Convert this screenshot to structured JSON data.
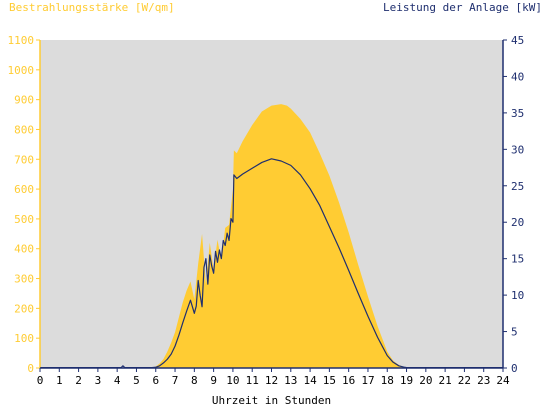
{
  "chart_data": {
    "type": "area",
    "title_left": "Bestrahlungsstärke [W/qm]",
    "title_right": "Leistung der Anlage [kW]",
    "xlabel": "Uhrzeit in Stunden",
    "xlim": [
      0,
      24
    ],
    "x_ticks": [
      "0",
      "1",
      "2",
      "3",
      "4",
      "5",
      "6",
      "7",
      "8",
      "9",
      "10",
      "11",
      "12",
      "13",
      "14",
      "15",
      "16",
      "17",
      "18",
      "19",
      "20",
      "21",
      "22",
      "23",
      "24"
    ],
    "ylim_left": [
      0,
      1100
    ],
    "y_ticks_left": [
      "0",
      "100",
      "200",
      "300",
      "400",
      "500",
      "600",
      "700",
      "800",
      "900",
      "1000",
      "1100"
    ],
    "ylim_right": [
      0,
      45
    ],
    "y_ticks_right": [
      "0",
      "5",
      "10",
      "15",
      "20",
      "25",
      "30",
      "35",
      "40",
      "45"
    ],
    "grid": false,
    "background_color": "#dcdcdc",
    "series": [
      {
        "name": "Bestrahlungsstärke [W/qm]",
        "axis": "left",
        "render": "area",
        "color": "#ffcc33",
        "x": [
          0,
          5.8,
          6.0,
          6.2,
          6.4,
          6.6,
          6.8,
          7.0,
          7.2,
          7.4,
          7.6,
          7.8,
          8.0,
          8.2,
          8.4,
          8.6,
          8.8,
          9.0,
          9.2,
          9.4,
          9.6,
          9.8,
          10.0,
          10.05,
          10.2,
          10.5,
          11.0,
          11.5,
          12.0,
          12.5,
          12.8,
          13.0,
          13.5,
          14.0,
          14.5,
          15.0,
          15.5,
          16.0,
          16.5,
          17.0,
          17.5,
          18.0,
          18.3,
          18.6,
          18.9,
          19.0,
          24
        ],
        "values": [
          0,
          0,
          5,
          15,
          30,
          55,
          85,
          120,
          170,
          220,
          260,
          290,
          230,
          350,
          450,
          280,
          420,
          330,
          430,
          360,
          470,
          480,
          600,
          730,
          720,
          760,
          815,
          860,
          880,
          885,
          880,
          870,
          835,
          790,
          720,
          645,
          555,
          455,
          345,
          240,
          140,
          55,
          25,
          10,
          3,
          0,
          0
        ]
      },
      {
        "name": "Leistung der Anlage [kW]",
        "axis": "right",
        "render": "line",
        "color": "#1f2f6f",
        "x": [
          0,
          4.2,
          4.3,
          4.4,
          5.8,
          6.0,
          6.2,
          6.4,
          6.6,
          6.8,
          7.0,
          7.2,
          7.4,
          7.6,
          7.8,
          8.0,
          8.1,
          8.2,
          8.3,
          8.4,
          8.5,
          8.6,
          8.7,
          8.8,
          8.9,
          9.0,
          9.1,
          9.2,
          9.3,
          9.4,
          9.5,
          9.6,
          9.7,
          9.8,
          9.9,
          10.0,
          10.05,
          10.2,
          10.5,
          11.0,
          11.5,
          12.0,
          12.5,
          13.0,
          13.5,
          14.0,
          14.5,
          15.0,
          15.5,
          16.0,
          16.5,
          17.0,
          17.5,
          18.0,
          18.3,
          18.6,
          18.9,
          19.0,
          24
        ],
        "values": [
          0.05,
          0.05,
          0.3,
          0.05,
          0.05,
          0.1,
          0.3,
          0.7,
          1.2,
          1.9,
          3.0,
          4.5,
          6.2,
          7.8,
          9.3,
          7.5,
          8.5,
          12.0,
          10.0,
          8.4,
          13.8,
          15.0,
          11.5,
          15.5,
          14.0,
          13.0,
          16.0,
          14.5,
          16.2,
          15.0,
          17.5,
          16.8,
          18.5,
          17.5,
          20.5,
          20.0,
          26.5,
          26.0,
          26.6,
          27.4,
          28.2,
          28.7,
          28.4,
          27.8,
          26.5,
          24.6,
          22.3,
          19.4,
          16.5,
          13.4,
          10.2,
          7.1,
          4.2,
          1.7,
          0.8,
          0.3,
          0.1,
          0.05,
          0.05
        ]
      }
    ]
  }
}
